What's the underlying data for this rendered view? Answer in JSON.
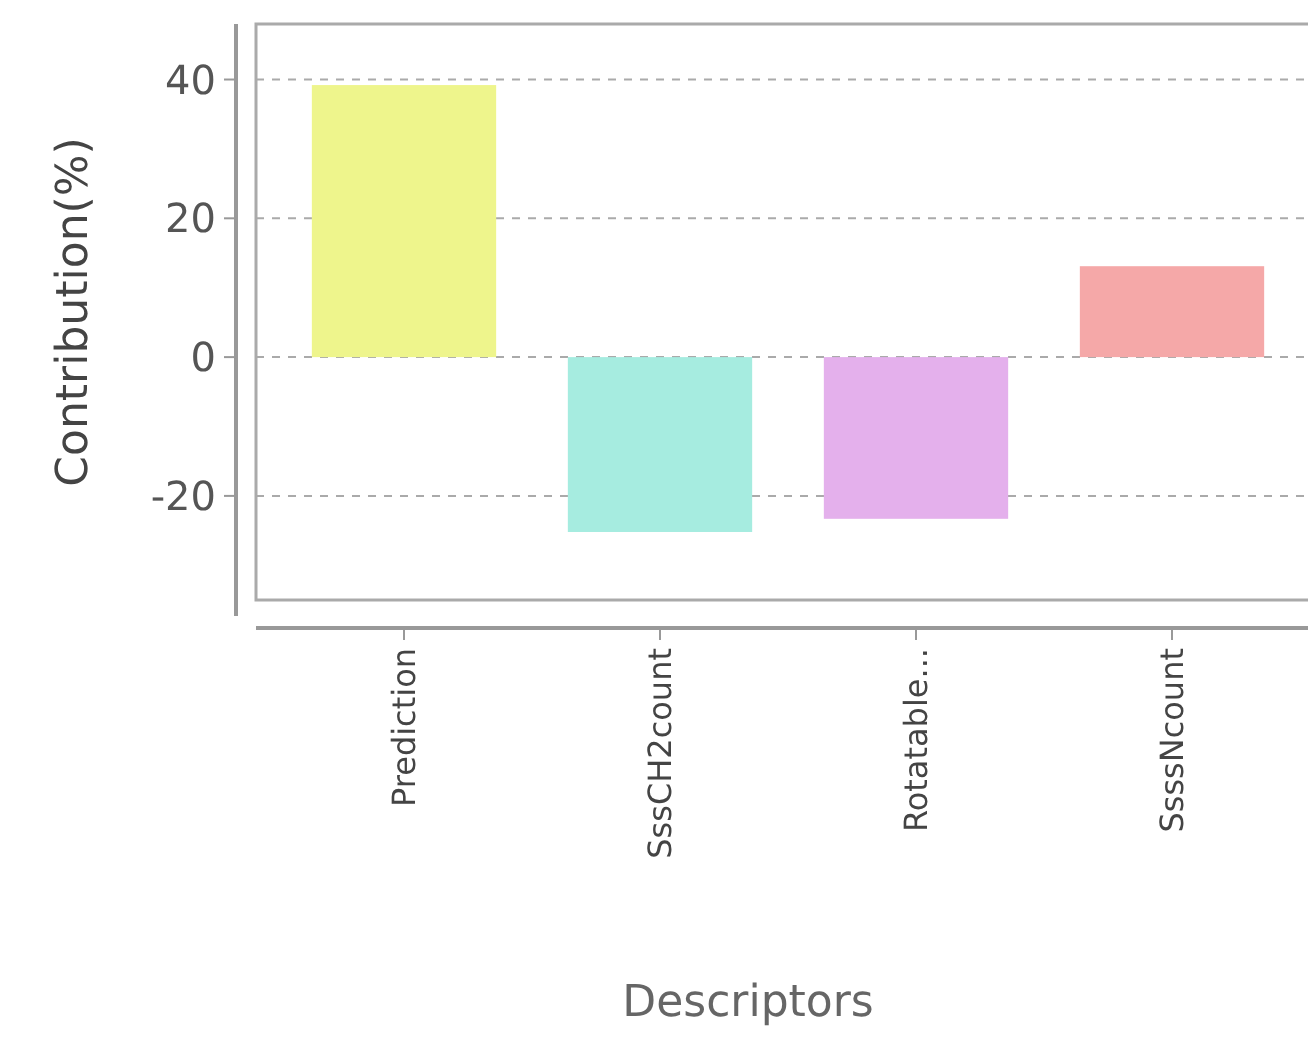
{
  "chart_data": {
    "type": "bar",
    "xlabel": "Descriptors",
    "ylabel": "Contribution(%)",
    "categories": [
      "Prediction",
      "SssCH2count",
      "Rotatable...",
      "SsssNcount"
    ],
    "values": [
      39.2,
      -25.2,
      -23.3,
      13.1
    ],
    "colors": [
      "#eef58c",
      "#a6ece0",
      "#e4b0ec",
      "#f5a8a8"
    ],
    "ylim": [
      -35,
      48
    ],
    "yticks": [
      -20,
      0,
      20,
      40
    ],
    "grid": "y"
  }
}
